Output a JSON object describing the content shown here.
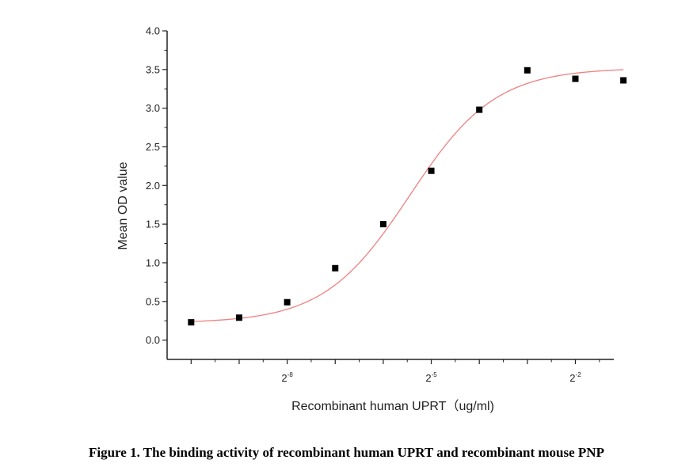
{
  "figure": {
    "caption": "Figure 1. The binding activity of recombinant human UPRT and recombinant mouse PNP"
  },
  "chart_data": {
    "type": "scatter",
    "xlabel": "Recombinant human  UPRT（ug/ml)",
    "ylabel": "Mean OD value",
    "x_scale": "log2",
    "xlim": [
      -10.5,
      -1.2
    ],
    "ylim": [
      -0.25,
      4.0
    ],
    "y_ticks": [
      0.0,
      0.5,
      1.0,
      1.5,
      2.0,
      2.5,
      3.0,
      3.5,
      4.0
    ],
    "y_tick_labels": [
      "0.0",
      "0.5",
      "1.0",
      "1.5",
      "2.0",
      "2.5",
      "3.0",
      "3.5",
      "4.0"
    ],
    "x_tick_labels": [
      {
        "base": "2",
        "exp": "-8",
        "at": -8
      },
      {
        "base": "2",
        "exp": "-5",
        "at": -5
      },
      {
        "base": "2",
        "exp": "-2",
        "at": -2
      }
    ],
    "series": [
      {
        "marker": "square",
        "color": "#000000",
        "points": [
          {
            "x": -10,
            "y": 0.23
          },
          {
            "x": -9,
            "y": 0.29
          },
          {
            "x": -8,
            "y": 0.49
          },
          {
            "x": -7,
            "y": 0.93
          },
          {
            "x": -6,
            "y": 1.5
          },
          {
            "x": -5,
            "y": 2.19
          },
          {
            "x": -4,
            "y": 2.98
          },
          {
            "x": -3,
            "y": 3.49
          },
          {
            "x": -2,
            "y": 3.38
          },
          {
            "x": -1,
            "y": 3.36
          }
        ]
      }
    ],
    "fit_curve": {
      "type": "logistic",
      "color": "#f08080",
      "bottom": 0.22,
      "top": 3.52,
      "midpoint": -5.45,
      "slope": 1.12
    },
    "grid": false
  }
}
